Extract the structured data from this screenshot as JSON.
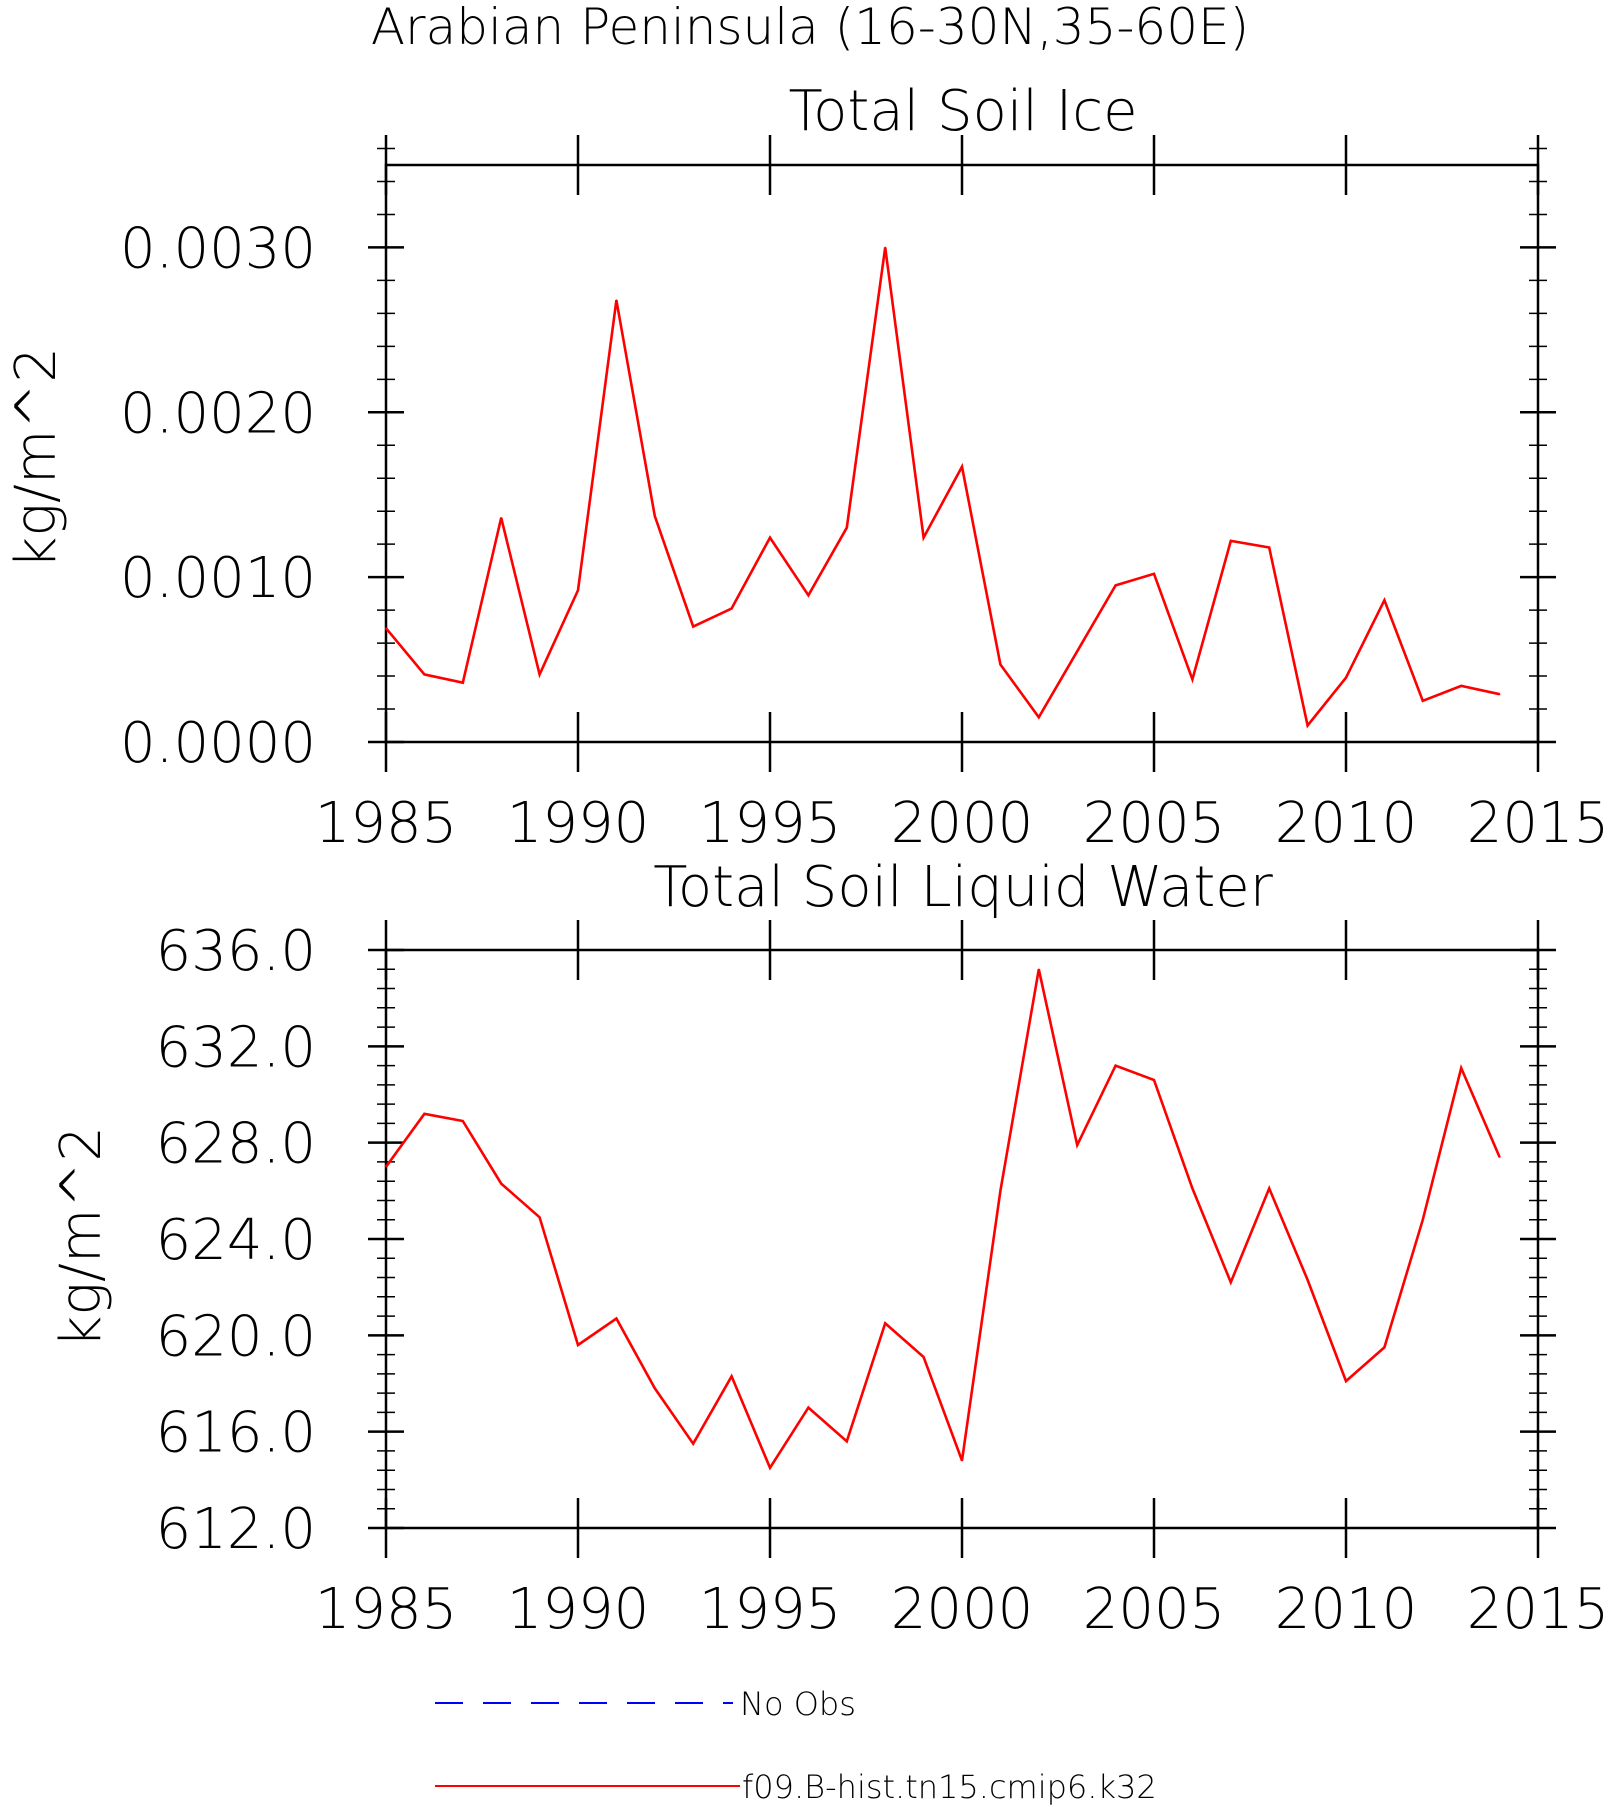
{
  "page_title": "Arabian Peninsula (16-30N,35-60E)",
  "colors": {
    "model": "#ff0000",
    "obs": "#0000ff",
    "axes": "#000000"
  },
  "legend": [
    {
      "label": "No Obs",
      "color": "#0000ff",
      "style": "dashed"
    },
    {
      "label": "f09.B-hist.tn15.cmip6.k32",
      "color": "#ff0000",
      "style": "solid"
    }
  ],
  "chart_data": [
    {
      "type": "line",
      "title": "Total Soil Ice",
      "ylabel": "kg/m^2",
      "xlabel": "",
      "xlim": [
        1985,
        2015
      ],
      "ylim": [
        0,
        0.0035
      ],
      "xticks": [
        1985,
        1990,
        1995,
        2000,
        2005,
        2010,
        2015
      ],
      "xtick_labels": [
        "1985",
        "1990",
        "1995",
        "2000",
        "2005",
        "2010",
        "2015"
      ],
      "yticks": [
        0,
        0.001,
        0.002,
        0.003
      ],
      "ytick_labels": [
        "0.0000",
        "0.0010",
        "0.0020",
        "0.0030"
      ],
      "y_minor_step": 0.0002,
      "x": [
        1985,
        1986,
        1987,
        1988,
        1989,
        1990,
        1991,
        1992,
        1993,
        1994,
        1995,
        1996,
        1997,
        1998,
        1999,
        2000,
        2001,
        2002,
        2003,
        2004,
        2005,
        2006,
        2007,
        2008,
        2009,
        2010,
        2011,
        2012,
        2013,
        2014
      ],
      "series": [
        {
          "name": "f09.B-hist.tn15.cmip6.k32",
          "color": "#ff0000",
          "values": [
            0.00069,
            0.00041,
            0.00036,
            0.00136,
            0.00041,
            0.00092,
            0.00268,
            0.00137,
            0.0007,
            0.00081,
            0.00124,
            0.00089,
            0.0013,
            0.003,
            0.00124,
            0.00167,
            0.00047,
            0.00015,
            0.00055,
            0.00095,
            0.00102,
            0.00038,
            0.00122,
            0.00118,
            0.0001,
            0.00039,
            0.00086,
            0.00025,
            0.00034,
            0.00029
          ]
        }
      ],
      "grid": false,
      "legend_position": "bottom"
    },
    {
      "type": "line",
      "title": "Total Soil Liquid Water",
      "ylabel": "kg/m^2",
      "xlabel": "",
      "xlim": [
        1985,
        2015
      ],
      "ylim": [
        612,
        636
      ],
      "xticks": [
        1985,
        1990,
        1995,
        2000,
        2005,
        2010,
        2015
      ],
      "xtick_labels": [
        "1985",
        "1990",
        "1995",
        "2000",
        "2005",
        "2010",
        "2015"
      ],
      "yticks": [
        612,
        616,
        620,
        624,
        628,
        632,
        636
      ],
      "ytick_labels": [
        "612.0",
        "616.0",
        "620.0",
        "624.0",
        "628.0",
        "632.0",
        "636.0"
      ],
      "y_minor_step": 0.8,
      "x": [
        1985,
        1986,
        1987,
        1988,
        1989,
        1990,
        1991,
        1992,
        1993,
        1994,
        1995,
        1996,
        1997,
        1998,
        1999,
        2000,
        2001,
        2002,
        2003,
        2004,
        2005,
        2006,
        2007,
        2008,
        2009,
        2010,
        2011,
        2012,
        2013,
        2014
      ],
      "series": [
        {
          "name": "f09.B-hist.tn15.cmip6.k32",
          "color": "#ff0000",
          "values": [
            627.0,
            629.2,
            628.9,
            626.3,
            624.9,
            619.6,
            620.7,
            617.8,
            615.5,
            618.3,
            614.5,
            617.0,
            615.6,
            620.5,
            619.1,
            614.8,
            626.0,
            635.2,
            627.9,
            631.2,
            630.6,
            626.1,
            622.2,
            626.1,
            622.3,
            618.1,
            619.5,
            624.8,
            631.1,
            627.4
          ]
        }
      ],
      "grid": false,
      "legend_position": "bottom"
    }
  ]
}
